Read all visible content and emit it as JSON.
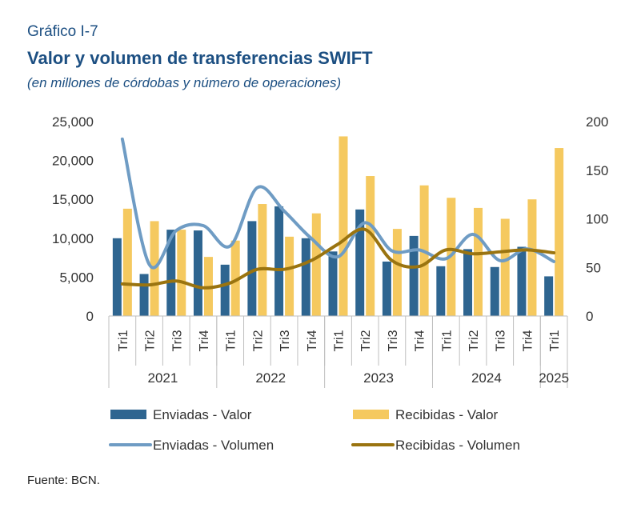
{
  "header": {
    "label": "Gráfico I-7",
    "title": "Valor y volumen de transferencias SWIFT",
    "subtitle": "(en millones de córdobas y número de operaciones)"
  },
  "footer": {
    "source": "Fuente: BCN."
  },
  "colors": {
    "enviadas_valor": "#2e6590",
    "recibidas_valor": "#f5c95f",
    "enviadas_volumen": "#6f9cc4",
    "recibidas_volumen": "#9a7410",
    "axis": "#bfbfbf",
    "text": "#333333"
  },
  "chart_data": {
    "type": "bar",
    "categories": [
      "Tri1",
      "Tri2",
      "Tri3",
      "Tri4",
      "Tri1",
      "Tri2",
      "Tri3",
      "Tri4",
      "Tri1",
      "Tri2",
      "Tri3",
      "Tri4",
      "Tri1",
      "Tri2",
      "Tri3",
      "Tri4",
      "Tri1"
    ],
    "groups": [
      {
        "label": "2021",
        "count": 4
      },
      {
        "label": "2022",
        "count": 4
      },
      {
        "label": "2023",
        "count": 4
      },
      {
        "label": "2024",
        "count": 4
      },
      {
        "label": "2025",
        "count": 1
      }
    ],
    "y_left": {
      "ylim": [
        0,
        25000
      ],
      "ticks": [
        "0",
        "5,000",
        "10,000",
        "15,000",
        "20,000",
        "25,000"
      ]
    },
    "y_right": {
      "ylim": [
        0,
        200
      ],
      "ticks": [
        "0",
        "50",
        "100",
        "150",
        "200"
      ]
    },
    "series": [
      {
        "name": "Enviadas - Valor",
        "kind": "bar",
        "axis": "left",
        "values": [
          10000,
          5400,
          11100,
          11000,
          6600,
          12200,
          14100,
          10000,
          8300,
          13700,
          7000,
          10300,
          6400,
          8600,
          6300,
          8900,
          5100
        ]
      },
      {
        "name": "Recibidas - Valor",
        "kind": "bar",
        "axis": "left",
        "values": [
          13800,
          12200,
          11100,
          7600,
          9700,
          14400,
          10200,
          13200,
          23100,
          18000,
          11200,
          16800,
          15200,
          13900,
          12500,
          15000,
          21600
        ]
      },
      {
        "name": "Enviadas - Volumen",
        "kind": "line",
        "axis": "right",
        "values": [
          182,
          53,
          88,
          93,
          72,
          132,
          108,
          80,
          61,
          96,
          67,
          68,
          59,
          84,
          57,
          69,
          56
        ]
      },
      {
        "name": "Recibidas - Volumen",
        "kind": "line",
        "axis": "right",
        "values": [
          33,
          32,
          36,
          29,
          34,
          48,
          48,
          57,
          74,
          89,
          57,
          51,
          68,
          64,
          66,
          68,
          65
        ]
      }
    ],
    "legend_position": "bottom",
    "grid": false
  }
}
